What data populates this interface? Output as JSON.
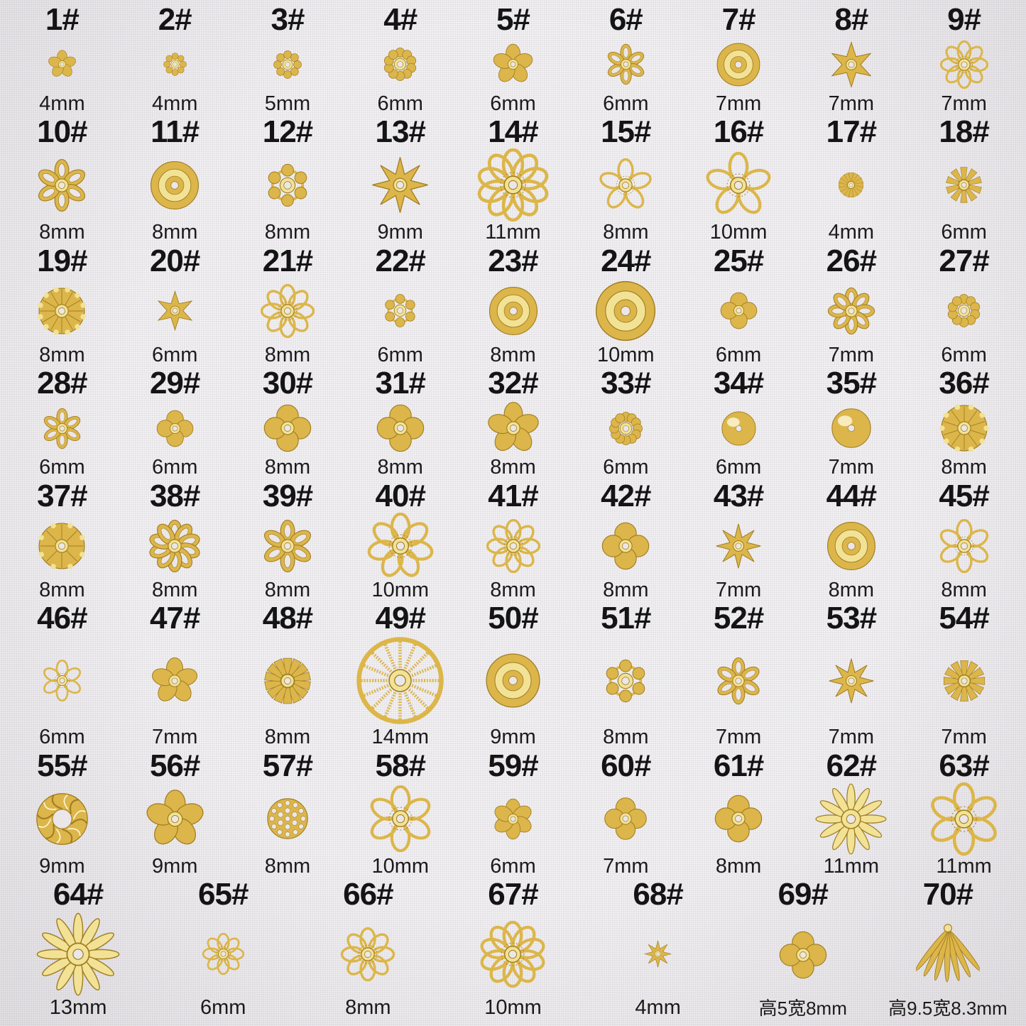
{
  "page": {
    "background": "#ebe9ec",
    "text_color": "#141414",
    "colors": {
      "base": "#dcb64a",
      "dark": "#a07c22",
      "light": "#f2e295",
      "bright": "#fdf6d2",
      "hole": "#eae6e9"
    }
  },
  "rows": [
    9,
    9,
    9,
    9,
    9,
    9,
    9,
    7
  ],
  "items": [
    {
      "num": "1#",
      "size": "4mm",
      "mm": 4,
      "variant": "plain",
      "petals": 5
    },
    {
      "num": "2#",
      "size": "4mm",
      "mm": 4,
      "variant": "dots",
      "petals": 8
    },
    {
      "num": "3#",
      "size": "5mm",
      "mm": 5,
      "variant": "dots",
      "petals": 8
    },
    {
      "num": "4#",
      "size": "6mm",
      "mm": 6,
      "variant": "dots",
      "petals": 10
    },
    {
      "num": "5#",
      "size": "6mm",
      "mm": 6,
      "variant": "plain",
      "petals": 5
    },
    {
      "num": "6#",
      "size": "6mm",
      "mm": 6,
      "variant": "petal",
      "petals": 6
    },
    {
      "num": "7#",
      "size": "7mm",
      "mm": 7,
      "variant": "rose",
      "petals": 0
    },
    {
      "num": "8#",
      "size": "7mm",
      "mm": 7,
      "variant": "star",
      "petals": 6
    },
    {
      "num": "9#",
      "size": "7mm",
      "mm": 7,
      "variant": "filigree",
      "petals": 8
    },
    {
      "num": "10#",
      "size": "8mm",
      "mm": 8,
      "variant": "petal",
      "petals": 6
    },
    {
      "num": "11#",
      "size": "8mm",
      "mm": 8,
      "variant": "rose",
      "petals": 0
    },
    {
      "num": "12#",
      "size": "8mm",
      "mm": 8,
      "variant": "dots",
      "petals": 6
    },
    {
      "num": "13#",
      "size": "9mm",
      "mm": 9,
      "variant": "star",
      "petals": 8
    },
    {
      "num": "14#",
      "size": "11mm",
      "mm": 11,
      "variant": "filigree",
      "petals": 10
    },
    {
      "num": "15#",
      "size": "8mm",
      "mm": 8,
      "variant": "filigree",
      "petals": 5
    },
    {
      "num": "16#",
      "size": "10mm",
      "mm": 10,
      "variant": "filigree",
      "petals": 5
    },
    {
      "num": "17#",
      "size": "4mm",
      "mm": 4,
      "variant": "sunburst",
      "petals": 16
    },
    {
      "num": "18#",
      "size": "6mm",
      "mm": 6,
      "variant": "sunburst",
      "petals": 10
    },
    {
      "num": "19#",
      "size": "8mm",
      "mm": 8,
      "variant": "scallop",
      "petals": 12
    },
    {
      "num": "20#",
      "size": "6mm",
      "mm": 6,
      "variant": "star",
      "petals": 6
    },
    {
      "num": "21#",
      "size": "8mm",
      "mm": 8,
      "variant": "filigree",
      "petals": 8
    },
    {
      "num": "22#",
      "size": "6mm",
      "mm": 6,
      "variant": "dots",
      "petals": 6
    },
    {
      "num": "23#",
      "size": "8mm",
      "mm": 8,
      "variant": "rose",
      "petals": 0
    },
    {
      "num": "24#",
      "size": "10mm",
      "mm": 10,
      "variant": "rose",
      "petals": 0
    },
    {
      "num": "25#",
      "size": "6mm",
      "mm": 6,
      "variant": "quatrefoil",
      "petals": 4
    },
    {
      "num": "26#",
      "size": "7mm",
      "mm": 7,
      "variant": "petal",
      "petals": 8
    },
    {
      "num": "27#",
      "size": "6mm",
      "mm": 6,
      "variant": "dots",
      "petals": 10
    },
    {
      "num": "28#",
      "size": "6mm",
      "mm": 6,
      "variant": "petal",
      "petals": 6
    },
    {
      "num": "29#",
      "size": "6mm",
      "mm": 6,
      "variant": "quatrefoil",
      "petals": 4
    },
    {
      "num": "30#",
      "size": "8mm",
      "mm": 8,
      "variant": "quatrefoil",
      "petals": 4
    },
    {
      "num": "31#",
      "size": "8mm",
      "mm": 8,
      "variant": "quatrefoil",
      "petals": 4
    },
    {
      "num": "32#",
      "size": "8mm",
      "mm": 8,
      "variant": "plain",
      "petals": 5
    },
    {
      "num": "33#",
      "size": "6mm",
      "mm": 6,
      "variant": "dots",
      "petals": 12
    },
    {
      "num": "34#",
      "size": "6mm",
      "mm": 6,
      "variant": "dome",
      "petals": 0
    },
    {
      "num": "35#",
      "size": "7mm",
      "mm": 7,
      "variant": "dome",
      "petals": 0
    },
    {
      "num": "36#",
      "size": "8mm",
      "mm": 8,
      "variant": "scallop",
      "petals": 10
    },
    {
      "num": "37#",
      "size": "8mm",
      "mm": 8,
      "variant": "scallop",
      "petals": 8
    },
    {
      "num": "38#",
      "size": "8mm",
      "mm": 8,
      "variant": "petal",
      "petals": 10
    },
    {
      "num": "39#",
      "size": "8mm",
      "mm": 8,
      "variant": "petal",
      "petals": 6
    },
    {
      "num": "40#",
      "size": "10mm",
      "mm": 10,
      "variant": "filigree",
      "petals": 7
    },
    {
      "num": "41#",
      "size": "8mm",
      "mm": 8,
      "variant": "filigree",
      "petals": 8
    },
    {
      "num": "42#",
      "size": "8mm",
      "mm": 8,
      "variant": "quatrefoil",
      "petals": 4
    },
    {
      "num": "43#",
      "size": "7mm",
      "mm": 7,
      "variant": "star",
      "petals": 8
    },
    {
      "num": "44#",
      "size": "8mm",
      "mm": 8,
      "variant": "rose",
      "petals": 0
    },
    {
      "num": "45#",
      "size": "8mm",
      "mm": 8,
      "variant": "filigree",
      "petals": 6
    },
    {
      "num": "46#",
      "size": "6mm",
      "mm": 6,
      "variant": "filigree",
      "petals": 6
    },
    {
      "num": "47#",
      "size": "7mm",
      "mm": 7,
      "variant": "plain",
      "petals": 5
    },
    {
      "num": "48#",
      "size": "8mm",
      "mm": 8,
      "variant": "sunburst",
      "petals": 14
    },
    {
      "num": "49#",
      "size": "14mm",
      "mm": 14,
      "variant": "wheel",
      "petals": 16
    },
    {
      "num": "50#",
      "size": "9mm",
      "mm": 9,
      "variant": "rose",
      "petals": 0
    },
    {
      "num": "51#",
      "size": "8mm",
      "mm": 8,
      "variant": "dots",
      "petals": 6
    },
    {
      "num": "52#",
      "size": "7mm",
      "mm": 7,
      "variant": "petal",
      "petals": 6
    },
    {
      "num": "53#",
      "size": "7mm",
      "mm": 7,
      "variant": "star",
      "petals": 8
    },
    {
      "num": "54#",
      "size": "7mm",
      "mm": 7,
      "variant": "sunburst",
      "petals": 12
    },
    {
      "num": "55#",
      "size": "9mm",
      "mm": 9,
      "variant": "pinwheel",
      "petals": 6
    },
    {
      "num": "56#",
      "size": "9mm",
      "mm": 9,
      "variant": "plain",
      "petals": 5
    },
    {
      "num": "57#",
      "size": "8mm",
      "mm": 8,
      "variant": "mesh",
      "petals": 0
    },
    {
      "num": "58#",
      "size": "10mm",
      "mm": 10,
      "variant": "filigree",
      "petals": 6
    },
    {
      "num": "59#",
      "size": "6mm",
      "mm": 6,
      "variant": "plain",
      "petals": 6
    },
    {
      "num": "60#",
      "size": "7mm",
      "mm": 7,
      "variant": "quatrefoil",
      "petals": 4
    },
    {
      "num": "61#",
      "size": "8mm",
      "mm": 8,
      "variant": "quatrefoil",
      "petals": 4
    },
    {
      "num": "62#",
      "size": "11mm",
      "mm": 11,
      "variant": "daisy",
      "petals": 12
    },
    {
      "num": "63#",
      "size": "11mm",
      "mm": 11,
      "variant": "filigree",
      "petals": 6
    },
    {
      "num": "64#",
      "size": "13mm",
      "mm": 13,
      "variant": "daisy",
      "petals": 12
    },
    {
      "num": "65#",
      "size": "6mm",
      "mm": 6,
      "variant": "filigree",
      "petals": 8
    },
    {
      "num": "66#",
      "size": "8mm",
      "mm": 8,
      "variant": "filigree",
      "petals": 8
    },
    {
      "num": "67#",
      "size": "10mm",
      "mm": 10,
      "variant": "filigree",
      "petals": 10
    },
    {
      "num": "68#",
      "size": "4mm",
      "mm": 4,
      "variant": "star",
      "petals": 8
    },
    {
      "num": "69#",
      "size": "高5宽8mm",
      "mm": 8,
      "variant": "quatrefoil",
      "petals": 4,
      "cn": true
    },
    {
      "num": "70#",
      "size": "高9.5宽8.3mm",
      "mm": 9.5,
      "variant": "tassel",
      "petals": 7,
      "cn": true
    }
  ]
}
